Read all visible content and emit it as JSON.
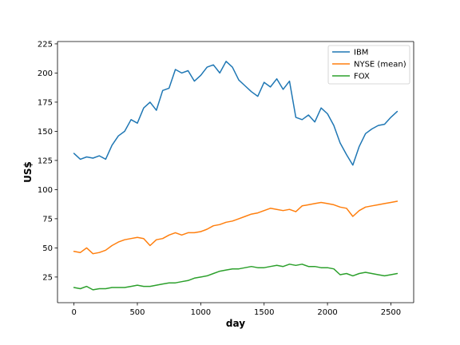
{
  "chart_data": {
    "type": "line",
    "title": "",
    "xlabel": "day",
    "ylabel": "US$",
    "xlim": [
      -130,
      2680
    ],
    "ylim": [
      3,
      227
    ],
    "xticks": [
      0,
      500,
      1000,
      1500,
      2000,
      2500
    ],
    "yticks": [
      25,
      50,
      75,
      100,
      125,
      150,
      175,
      200,
      225
    ],
    "xtick_labels": [
      "0",
      "500",
      "1000",
      "1500",
      "2000",
      "2500"
    ],
    "ytick_labels": [
      "25",
      "50",
      "75",
      "100",
      "125",
      "150",
      "175",
      "200",
      "225"
    ],
    "grid": false,
    "legend_position": "top-right",
    "series": [
      {
        "name": "IBM",
        "color": "#1f77b4",
        "x": [
          0,
          50,
          100,
          150,
          200,
          250,
          300,
          350,
          400,
          450,
          500,
          550,
          600,
          650,
          700,
          750,
          800,
          850,
          900,
          950,
          1000,
          1050,
          1100,
          1150,
          1200,
          1250,
          1300,
          1350,
          1400,
          1450,
          1500,
          1550,
          1600,
          1650,
          1700,
          1750,
          1800,
          1850,
          1900,
          1950,
          2000,
          2050,
          2100,
          2150,
          2200,
          2250,
          2300,
          2350,
          2400,
          2450,
          2500,
          2550
        ],
        "values": [
          131,
          126,
          128,
          127,
          129,
          126,
          138,
          146,
          150,
          160,
          157,
          170,
          175,
          168,
          185,
          187,
          203,
          200,
          202,
          193,
          198,
          205,
          207,
          200,
          210,
          205,
          194,
          189,
          184,
          180,
          192,
          188,
          195,
          186,
          193,
          162,
          160,
          164,
          158,
          170,
          165,
          155,
          140,
          130,
          121,
          137,
          148,
          152,
          155,
          156,
          162,
          167
        ]
      },
      {
        "name": "NYSE (mean)",
        "color": "#ff7f0e",
        "x": [
          0,
          50,
          100,
          150,
          200,
          250,
          300,
          350,
          400,
          450,
          500,
          550,
          600,
          650,
          700,
          750,
          800,
          850,
          900,
          950,
          1000,
          1050,
          1100,
          1150,
          1200,
          1250,
          1300,
          1350,
          1400,
          1450,
          1500,
          1550,
          1600,
          1650,
          1700,
          1750,
          1800,
          1850,
          1900,
          1950,
          2000,
          2050,
          2100,
          2150,
          2200,
          2250,
          2300,
          2350,
          2400,
          2450,
          2500,
          2550
        ],
        "values": [
          47,
          46,
          50,
          45,
          46,
          48,
          52,
          55,
          57,
          58,
          59,
          58,
          52,
          57,
          58,
          61,
          63,
          61,
          63,
          63,
          64,
          66,
          69,
          70,
          72,
          73,
          75,
          77,
          79,
          80,
          82,
          84,
          83,
          82,
          83,
          81,
          86,
          87,
          88,
          89,
          88,
          87,
          85,
          84,
          77,
          82,
          85,
          86,
          87,
          88,
          89,
          90
        ]
      },
      {
        "name": "FOX",
        "color": "#2ca02c",
        "x": [
          0,
          50,
          100,
          150,
          200,
          250,
          300,
          350,
          400,
          450,
          500,
          550,
          600,
          650,
          700,
          750,
          800,
          850,
          900,
          950,
          1000,
          1050,
          1100,
          1150,
          1200,
          1250,
          1300,
          1350,
          1400,
          1450,
          1500,
          1550,
          1600,
          1650,
          1700,
          1750,
          1800,
          1850,
          1900,
          1950,
          2000,
          2050,
          2100,
          2150,
          2200,
          2250,
          2300,
          2350,
          2400,
          2450,
          2500,
          2550
        ],
        "values": [
          16,
          15,
          17,
          14,
          15,
          15,
          16,
          16,
          16,
          17,
          18,
          17,
          17,
          18,
          19,
          20,
          20,
          21,
          22,
          24,
          25,
          26,
          28,
          30,
          31,
          32,
          32,
          33,
          34,
          33,
          33,
          34,
          35,
          34,
          36,
          35,
          36,
          34,
          34,
          33,
          33,
          32,
          27,
          28,
          26,
          28,
          29,
          28,
          27,
          26,
          27,
          28
        ]
      }
    ]
  }
}
